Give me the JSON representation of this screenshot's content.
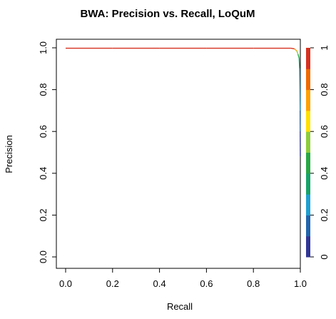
{
  "chart_data": {
    "type": "line",
    "title": "BWA: Precision vs. Recall, LoQuM",
    "xlabel": "Recall",
    "ylabel": "Precision",
    "xlim": [
      0.0,
      1.0
    ],
    "ylim": [
      0.0,
      1.0
    ],
    "x_ticks": [
      "0.0",
      "0.2",
      "0.4",
      "0.6",
      "0.8",
      "1.0"
    ],
    "y_ticks": [
      "0.0",
      "0.2",
      "0.4",
      "0.6",
      "0.8",
      "1.0"
    ],
    "colorbar": {
      "min": 0,
      "max": 1,
      "ticks": [
        "0",
        "0.2",
        "0.4",
        "0.6",
        "0.8",
        "1"
      ],
      "colors": [
        "#313695",
        "#2166ac",
        "#1fa0d0",
        "#16a36a",
        "#27a844",
        "#8ccd3a",
        "#ffe000",
        "#ffa000",
        "#f06a00",
        "#d7301f"
      ]
    },
    "grid": false,
    "series": [
      {
        "x": [
          0.0,
          0.2,
          0.4,
          0.6,
          0.8,
          0.96,
          0.975,
          0.985,
          0.99,
          0.995,
          0.997,
          0.998,
          0.999,
          0.9995,
          1.0
        ],
        "y": [
          0.998,
          0.998,
          0.998,
          0.998,
          0.998,
          0.998,
          0.995,
          0.985,
          0.97,
          0.95,
          0.9,
          0.8,
          0.7,
          0.6,
          0.48
        ],
        "threshold": [
          1.0,
          0.98,
          0.96,
          0.94,
          0.92,
          0.9,
          0.7,
          0.55,
          0.45,
          0.35,
          0.28,
          0.22,
          0.15,
          0.08,
          0.02
        ]
      }
    ]
  }
}
